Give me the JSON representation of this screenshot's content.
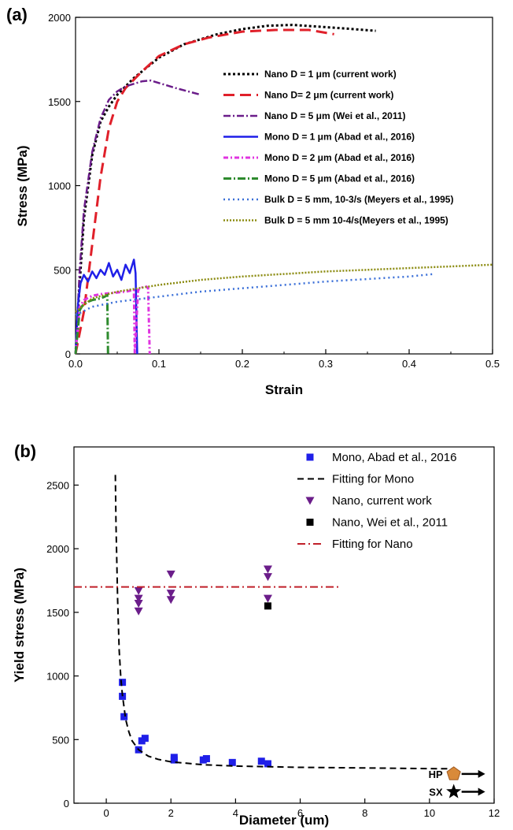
{
  "panels": [
    {
      "label": "(a)",
      "xlabel": "Strain",
      "ylabel": "Stress (MPa)",
      "xlim": [
        0,
        0.5
      ],
      "ylim": [
        0,
        2000
      ],
      "xticks": [
        "0.0",
        "0.1",
        "0.2",
        "0.3",
        "0.4",
        "0.5"
      ],
      "yticks": [
        "0",
        "500",
        "1000",
        "1500",
        "2000"
      ],
      "legend": [
        {
          "text": "Nano D = 1 μm (current work)",
          "color": "#000000",
          "dash": "3,3",
          "width": 3
        },
        {
          "text": "Nano D= 2 μm (current work)",
          "color": "#e0202a",
          "dash": "14,7",
          "width": 3
        },
        {
          "text": "Nano D = 5 μm (Wei et al., 2011)",
          "color": "#6b1d8a",
          "dash": "9,3,2,3",
          "width": 2.5
        },
        {
          "text": "Mono D = 1 μm (Abad et al., 2016)",
          "color": "#1f1fe8",
          "dash": "",
          "width": 2.5
        },
        {
          "text": "Mono D = 2 μm (Abad et al., 2016)",
          "color": "#e034e0",
          "dash": "6,3,2,3",
          "width": 3
        },
        {
          "text": "Mono D = 5 μm (Abad et al., 2016)",
          "color": "#2e8b2e",
          "dash": "10,3,2,3",
          "width": 3
        },
        {
          "text": "Bulk D = 5 mm, 10-3/s (Meyers et al., 1995)",
          "color": "#3a6fd8",
          "dash": "2,4",
          "width": 2.5
        },
        {
          "text": "Bulk D = 5 mm 10-4/s(Meyers et al., 1995)",
          "color": "#8b8b10",
          "dash": "2,2",
          "width": 2.5
        }
      ]
    },
    {
      "label": "(b)",
      "xlabel": "Diameter (um)",
      "ylabel": "Yield stress (MPa)",
      "xlim": [
        -1,
        12
      ],
      "ylim": [
        0,
        2800
      ],
      "xticks": [
        "0",
        "2",
        "4",
        "6",
        "8",
        "10",
        "12"
      ],
      "yticks": [
        "0",
        "500",
        "1000",
        "1500",
        "2000",
        "2500"
      ],
      "legend": [
        {
          "text": "Mono, Abad et al., 2016",
          "color": "#1f1fe8",
          "marker": "square"
        },
        {
          "text": "Fitting for Mono",
          "color": "#000000",
          "marker": "dash"
        },
        {
          "text": "Nano, current work",
          "color": "#6b1d8a",
          "marker": "triangle-down"
        },
        {
          "text": "Nano, Wei et al., 2011",
          "color": "#000000",
          "marker": "square"
        },
        {
          "text": "Fitting for Nano",
          "color": "#c0202a",
          "marker": "dashdot"
        }
      ],
      "annotations": [
        {
          "text": "HP",
          "x": 10.75,
          "y": 230,
          "marker": "pentagon",
          "color": "#d98a3a"
        },
        {
          "text": "SX",
          "x": 10.75,
          "y": 90,
          "marker": "star",
          "color": "#000000"
        }
      ]
    }
  ],
  "chart_data": [
    {
      "type": "line",
      "title": "",
      "xlabel": "Strain",
      "ylabel": "Stress (MPa)",
      "xlim": [
        0,
        0.5
      ],
      "ylim": [
        0,
        2000
      ],
      "series": [
        {
          "name": "Nano D = 1 μm (current work)",
          "x": [
            0,
            0.005,
            0.01,
            0.02,
            0.03,
            0.04,
            0.05,
            0.07,
            0.1,
            0.13,
            0.17,
            0.2,
            0.23,
            0.26,
            0.29,
            0.32,
            0.36
          ],
          "y": [
            0,
            420,
            800,
            1180,
            1380,
            1470,
            1540,
            1640,
            1760,
            1840,
            1900,
            1930,
            1950,
            1955,
            1945,
            1935,
            1920
          ]
        },
        {
          "name": "Nano D= 2 μm (current work)",
          "x": [
            0,
            0.01,
            0.02,
            0.03,
            0.04,
            0.05,
            0.06,
            0.08,
            0.1,
            0.13,
            0.16,
            0.2,
            0.24,
            0.28,
            0.31
          ],
          "y": [
            0,
            250,
            650,
            1050,
            1340,
            1500,
            1580,
            1680,
            1770,
            1840,
            1880,
            1915,
            1925,
            1925,
            1900
          ]
        },
        {
          "name": "Nano D = 5 μm (Wei et al., 2011)",
          "x": [
            0,
            0.005,
            0.01,
            0.02,
            0.03,
            0.04,
            0.05,
            0.06,
            0.08,
            0.09,
            0.1,
            0.12,
            0.15
          ],
          "y": [
            0,
            500,
            850,
            1200,
            1400,
            1510,
            1560,
            1590,
            1620,
            1625,
            1610,
            1580,
            1540
          ]
        },
        {
          "name": "Mono D = 1 μm (Abad et al., 2016)",
          "x": [
            0,
            0.003,
            0.006,
            0.01,
            0.015,
            0.02,
            0.025,
            0.03,
            0.035,
            0.04,
            0.045,
            0.05,
            0.055,
            0.06,
            0.065,
            0.07,
            0.072,
            0.074
          ],
          "y": [
            0,
            300,
            420,
            470,
            430,
            490,
            450,
            500,
            470,
            540,
            460,
            500,
            440,
            530,
            480,
            560,
            480,
            0
          ]
        },
        {
          "name": "Mono D = 2 μm (Abad et al., 2016)",
          "x": [
            0,
            0.005,
            0.01,
            0.02,
            0.03,
            0.04,
            0.05,
            0.06,
            0.07,
            0.071,
            0.075,
            0.08,
            0.085,
            0.087,
            0.089
          ],
          "y": [
            0,
            280,
            320,
            345,
            355,
            360,
            365,
            370,
            380,
            0,
            380,
            395,
            400,
            390,
            0
          ]
        },
        {
          "name": "Mono D = 5 μm (Abad et al., 2016)",
          "x": [
            0,
            0.005,
            0.01,
            0.02,
            0.03,
            0.035,
            0.038,
            0.039,
            0.04
          ],
          "y": [
            0,
            260,
            300,
            320,
            330,
            340,
            350,
            0,
            0
          ]
        },
        {
          "name": "Bulk D = 5 mm, 10-3/s (Meyers et al., 1995)",
          "x": [
            0,
            0.02,
            0.05,
            0.1,
            0.15,
            0.2,
            0.25,
            0.3,
            0.35,
            0.4,
            0.43
          ],
          "y": [
            230,
            280,
            310,
            340,
            370,
            390,
            410,
            430,
            445,
            460,
            475
          ]
        },
        {
          "name": "Bulk D = 5 mm 10-4/s(Meyers et al., 1995)",
          "x": [
            0,
            0.02,
            0.05,
            0.1,
            0.15,
            0.2,
            0.25,
            0.3,
            0.35,
            0.4,
            0.45,
            0.5
          ],
          "y": [
            250,
            330,
            370,
            410,
            440,
            460,
            475,
            490,
            500,
            510,
            520,
            530
          ]
        }
      ]
    },
    {
      "type": "scatter",
      "title": "",
      "xlabel": "Diameter (um)",
      "ylabel": "Yield stress (MPa)",
      "xlim": [
        -1,
        12
      ],
      "ylim": [
        0,
        2800
      ],
      "series": [
        {
          "name": "Mono, Abad et al., 2016",
          "x": [
            0.5,
            0.5,
            0.55,
            1.0,
            1.1,
            1.2,
            2.1,
            2.1,
            3.0,
            3.1,
            3.9,
            4.8,
            5.0
          ],
          "y": [
            950,
            840,
            680,
            420,
            490,
            510,
            360,
            340,
            340,
            350,
            320,
            330,
            310
          ]
        },
        {
          "name": "Fitting for Mono",
          "x": [
            0.28,
            0.3,
            0.35,
            0.4,
            0.45,
            0.5,
            0.6,
            0.7,
            0.8,
            1.0,
            1.3,
            1.6,
            2.0,
            3.0,
            4.0,
            6.0,
            8.0,
            10.0,
            10.8
          ],
          "y": [
            2580,
            2200,
            1600,
            1200,
            980,
            850,
            660,
            560,
            490,
            420,
            370,
            345,
            325,
            302,
            292,
            282,
            277,
            272,
            270
          ]
        },
        {
          "name": "Nano, current work",
          "x": [
            1.0,
            1.0,
            1.0,
            1.0,
            2.0,
            2.0,
            2.0,
            5.0,
            5.0,
            5.0
          ],
          "y": [
            1670,
            1610,
            1570,
            1510,
            1800,
            1650,
            1600,
            1840,
            1780,
            1610
          ]
        },
        {
          "name": "Nano, Wei et al., 2011",
          "x": [
            5.0
          ],
          "y": [
            1550
          ]
        },
        {
          "name": "Fitting for Nano",
          "x": [
            -1,
            7.2
          ],
          "y": [
            1700,
            1700
          ]
        }
      ]
    }
  ]
}
